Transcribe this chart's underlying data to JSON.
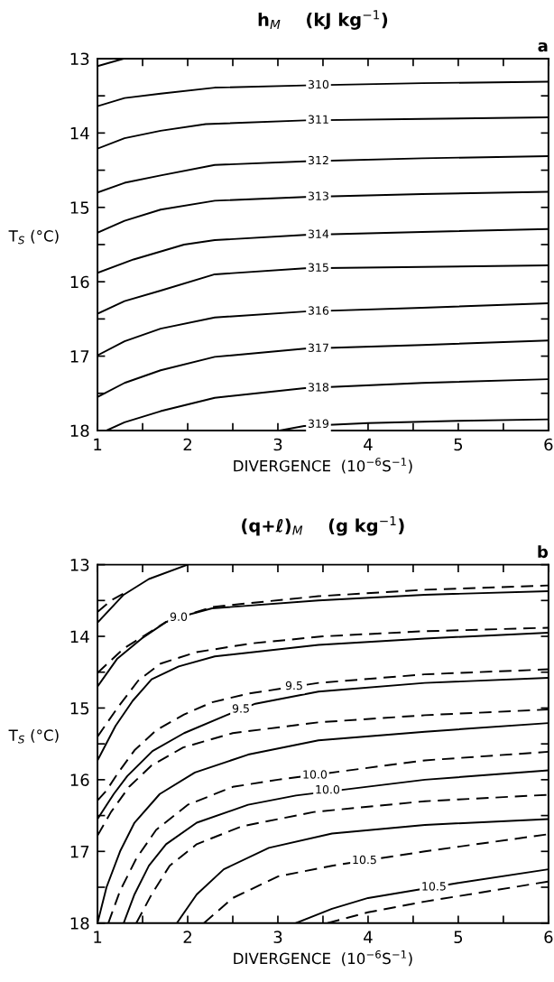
{
  "chart_data": [
    {
      "type": "line",
      "title": "h$_{M}$    (kJ kg$^{−1}$)",
      "xlabel": "DIVERGENCE  (10$^{−6}$S$^{−1}$)",
      "ylabel": "T$_{S}$ (°C)",
      "xlim": [
        1,
        6
      ],
      "ylim": [
        18,
        13
      ],
      "xticks": [
        1,
        {
          "value": 1.5,
          "label": null
        },
        2,
        {
          "value": 2.5,
          "label": null
        },
        3,
        {
          "value": 3.5,
          "label": null
        },
        4,
        {
          "value": 4.5,
          "label": null
        },
        5,
        {
          "value": 5.5,
          "label": null
        },
        6
      ],
      "yticks": [
        13,
        {
          "value": 13.5,
          "label": null
        },
        14,
        {
          "value": 14.5,
          "label": null
        },
        15,
        {
          "value": 15.5,
          "label": null
        },
        16,
        {
          "value": 16.5,
          "label": null
        },
        17,
        {
          "value": 17.5,
          "label": null
        },
        18
      ],
      "series": [
        {
          "color": "#000000",
          "line_style": "solid",
          "x": [
            1,
            1.29
          ],
          "values": [
            13.1,
            13.0
          ]
        },
        {
          "color": "#000000",
          "line_style": "solid",
          "x": [
            1,
            1.3,
            1.7,
            2.3,
            3.3,
            4.6,
            6
          ],
          "values": [
            13.64,
            13.53,
            13.47,
            13.39,
            13.36,
            13.33,
            13.31
          ]
        },
        {
          "color": "#000000",
          "line_style": "solid",
          "x": [
            1,
            1.3,
            1.7,
            2.2,
            3.3,
            4.6,
            6
          ],
          "values": [
            14.21,
            14.07,
            13.97,
            13.88,
            13.83,
            13.81,
            13.79
          ]
        },
        {
          "color": "#000000",
          "line_style": "solid",
          "x": [
            1,
            1.3,
            1.7,
            2.3,
            3.3,
            4.6,
            6
          ],
          "values": [
            14.8,
            14.67,
            14.57,
            14.43,
            14.38,
            14.34,
            14.31
          ]
        },
        {
          "color": "#000000",
          "line_style": "solid",
          "x": [
            1,
            1.3,
            1.7,
            2.3,
            3.3,
            4.6,
            6
          ],
          "values": [
            15.34,
            15.18,
            15.03,
            14.91,
            14.86,
            14.82,
            14.79
          ]
        },
        {
          "color": "#000000",
          "line_style": "solid",
          "x": [
            1,
            1.4,
            1.96,
            2.3,
            3.3,
            4.6,
            6
          ],
          "values": [
            15.88,
            15.7,
            15.5,
            15.44,
            15.37,
            15.33,
            15.29
          ]
        },
        {
          "color": "#000000",
          "line_style": "solid",
          "x": [
            1,
            1.3,
            1.7,
            2.3,
            3.3,
            4.6,
            6
          ],
          "values": [
            16.43,
            16.26,
            16.12,
            15.9,
            15.82,
            15.8,
            15.78
          ]
        },
        {
          "color": "#000000",
          "line_style": "solid",
          "x": [
            1,
            1.3,
            1.7,
            2.3,
            3.3,
            4.6,
            6
          ],
          "values": [
            16.99,
            16.8,
            16.63,
            16.48,
            16.4,
            16.35,
            16.29
          ]
        },
        {
          "color": "#000000",
          "line_style": "solid",
          "x": [
            1,
            1.3,
            1.7,
            2.3,
            3.3,
            4.6,
            6
          ],
          "values": [
            17.55,
            17.36,
            17.19,
            17.01,
            16.9,
            16.85,
            16.79
          ]
        },
        {
          "color": "#000000",
          "line_style": "solid",
          "x": [
            1.1,
            1.3,
            1.7,
            2.3,
            3.3,
            4.6,
            6
          ],
          "values": [
            18.0,
            17.89,
            17.74,
            17.56,
            17.43,
            17.36,
            17.31
          ]
        },
        {
          "color": "#000000",
          "line_style": "solid",
          "x": [
            3.02,
            3.29,
            4,
            5,
            6
          ],
          "values": [
            18.0,
            17.94,
            17.9,
            17.87,
            17.85
          ]
        }
      ],
      "annotations": [
        "a",
        {
          "text": "310",
          "x": 3.45,
          "y": 13.36
        },
        {
          "text": "311",
          "x": 3.45,
          "y": 13.83
        },
        {
          "text": "312",
          "x": 3.45,
          "y": 14.38
        },
        {
          "text": "313",
          "x": 3.45,
          "y": 14.86
        },
        {
          "text": "314",
          "x": 3.45,
          "y": 15.37
        },
        {
          "text": "315",
          "x": 3.45,
          "y": 15.82
        },
        {
          "text": "316",
          "x": 3.45,
          "y": 16.4
        },
        {
          "text": "317",
          "x": 3.45,
          "y": 16.9
        },
        {
          "text": "318",
          "x": 3.45,
          "y": 17.43
        },
        {
          "text": "319",
          "x": 3.45,
          "y": 17.92
        }
      ]
    },
    {
      "type": "line",
      "title": "(q+ℓ)$_{M}$    (g kg$^{−1}$)",
      "xlabel": "DIVERGENCE  (10$^{−6}$S$^{−1}$)",
      "ylabel": "T$_{S}$ (°C)",
      "xlim": [
        1,
        6
      ],
      "ylim": [
        18,
        13
      ],
      "xticks": [
        1,
        {
          "value": 1.5,
          "label": null
        },
        2,
        {
          "value": 2.5,
          "label": null
        },
        3,
        {
          "value": 3.5,
          "label": null
        },
        4,
        {
          "value": 4.5,
          "label": null
        },
        5,
        {
          "value": 5.5,
          "label": null
        },
        6
      ],
      "yticks": [
        13,
        {
          "value": 13.5,
          "label": null
        },
        14,
        {
          "value": 14.5,
          "label": null
        },
        15,
        {
          "value": 15.5,
          "label": null
        },
        16,
        {
          "value": 16.5,
          "label": null
        },
        17,
        {
          "value": 17.5,
          "label": null
        },
        18
      ],
      "series": [
        {
          "color": "#000000",
          "line_style": "solid",
          "x": [
            1,
            1.29,
            1.57,
            2.0
          ],
          "values": [
            13.81,
            13.42,
            13.2,
            13.0
          ]
        },
        {
          "color": "#000000",
          "line_style": "dashed",
          "x": [
            1,
            1.15,
            1.35
          ],
          "values": [
            13.66,
            13.5,
            13.36
          ]
        },
        {
          "color": "#000000",
          "line_style": "solid",
          "x": [
            1,
            1.22,
            1.49,
            1.76,
            2.0,
            2.27,
            3.45,
            4.63,
            6
          ],
          "values": [
            14.7,
            14.31,
            14.03,
            13.8,
            13.7,
            13.61,
            13.5,
            13.42,
            13.37
          ]
        },
        {
          "color": "#000000",
          "line_style": "dashed",
          "x": [
            1,
            1.29,
            1.76,
            2.27,
            3.45,
            4.63,
            6
          ],
          "values": [
            14.51,
            14.17,
            13.8,
            13.59,
            13.44,
            13.35,
            13.29
          ]
        },
        {
          "color": "#000000",
          "line_style": "solid",
          "x": [
            1,
            1.2,
            1.39,
            1.6,
            1.9,
            2.3,
            3.45,
            4.63,
            6
          ],
          "values": [
            15.73,
            15.25,
            14.9,
            14.6,
            14.42,
            14.28,
            14.12,
            14.03,
            13.95
          ]
        },
        {
          "color": "#000000",
          "line_style": "dashed",
          "x": [
            1,
            1.22,
            1.45,
            1.7,
            2.1,
            2.7,
            3.5,
            4.6,
            6
          ],
          "values": [
            15.4,
            15.0,
            14.62,
            14.38,
            14.22,
            14.1,
            14.0,
            13.93,
            13.88
          ]
        },
        {
          "color": "#000000",
          "line_style": "solid",
          "x": [
            1,
            1.18,
            1.33,
            1.61,
            1.96,
            2.43,
            2.75,
            3.45,
            4.63,
            6
          ],
          "values": [
            16.55,
            16.2,
            15.95,
            15.6,
            15.35,
            15.1,
            14.94,
            14.77,
            14.65,
            14.58
          ]
        },
        {
          "color": "#000000",
          "line_style": "dashed",
          "x": [
            1,
            1.1,
            1.22,
            1.41,
            1.65,
            1.96,
            2.27,
            2.67,
            3.45,
            4.63,
            6
          ],
          "values": [
            16.29,
            16.15,
            15.92,
            15.59,
            15.31,
            15.09,
            14.92,
            14.8,
            14.65,
            14.53,
            14.46
          ]
        },
        {
          "color": "#000000",
          "line_style": "solid",
          "x": [
            1,
            1.1,
            1.25,
            1.41,
            1.69,
            2.08,
            2.67,
            3.45,
            4.63,
            6
          ],
          "values": [
            18.0,
            17.5,
            17.0,
            16.6,
            16.2,
            15.9,
            15.65,
            15.45,
            15.33,
            15.21
          ]
        },
        {
          "color": "#000000",
          "line_style": "dashed",
          "x": [
            1,
            1.15,
            1.35,
            1.6,
            1.95,
            2.5,
            3.45,
            4.63,
            6
          ],
          "values": [
            16.78,
            16.45,
            16.1,
            15.8,
            15.55,
            15.35,
            15.2,
            15.1,
            15.02
          ]
        },
        {
          "color": "#000000",
          "line_style": "solid",
          "x": [
            1.29,
            1.41,
            1.57,
            1.76,
            2.1,
            2.67,
            3.2,
            4.63,
            6
          ],
          "values": [
            18.0,
            17.6,
            17.2,
            16.9,
            16.6,
            16.35,
            16.22,
            16.0,
            15.87
          ]
        },
        {
          "color": "#000000",
          "line_style": "dashed",
          "x": [
            1.12,
            1.25,
            1.43,
            1.65,
            2.0,
            2.5,
            3.0,
            4.63,
            6
          ],
          "values": [
            18.0,
            17.55,
            17.1,
            16.7,
            16.35,
            16.1,
            16.0,
            15.73,
            15.61
          ]
        },
        {
          "color": "#000000",
          "line_style": "solid",
          "x": [
            1.88,
            2.1,
            2.4,
            2.9,
            3.6,
            4.63,
            6
          ],
          "values": [
            18.0,
            17.6,
            17.25,
            16.95,
            16.75,
            16.63,
            16.55
          ]
        },
        {
          "color": "#000000",
          "line_style": "dashed",
          "x": [
            1.43,
            1.6,
            1.8,
            2.1,
            2.6,
            3.4,
            4.63,
            6
          ],
          "values": [
            18.0,
            17.6,
            17.2,
            16.9,
            16.65,
            16.45,
            16.3,
            16.21
          ]
        },
        {
          "color": "#000000",
          "line_style": "solid",
          "x": [
            3.2,
            3.6,
            4.0,
            5.0,
            6
          ],
          "values": [
            18.0,
            17.8,
            17.65,
            17.44,
            17.25
          ]
        },
        {
          "color": "#000000",
          "line_style": "dashed",
          "x": [
            2.18,
            2.5,
            3.0,
            3.6,
            4.63,
            6
          ],
          "values": [
            18.0,
            17.65,
            17.35,
            17.2,
            17.0,
            16.76
          ]
        },
        {
          "color": "#000000",
          "line_style": "dashed",
          "x": [
            3.55,
            4.0,
            4.63,
            6
          ],
          "values": [
            18.0,
            17.85,
            17.7,
            17.42
          ]
        }
      ],
      "annotations": [
        "b",
        {
          "text": "9.0",
          "x": 1.9,
          "y": 13.74
        },
        {
          "text": "9.5",
          "x": 3.18,
          "y": 14.7
        },
        {
          "text": "9.5",
          "x": 2.59,
          "y": 15.02
        },
        {
          "text": "10.0",
          "x": 3.41,
          "y": 15.94
        },
        {
          "text": "10.0",
          "x": 3.55,
          "y": 16.15
        },
        {
          "text": "10.5",
          "x": 3.96,
          "y": 17.13
        },
        {
          "text": "10.5",
          "x": 4.73,
          "y": 17.5
        }
      ]
    }
  ]
}
